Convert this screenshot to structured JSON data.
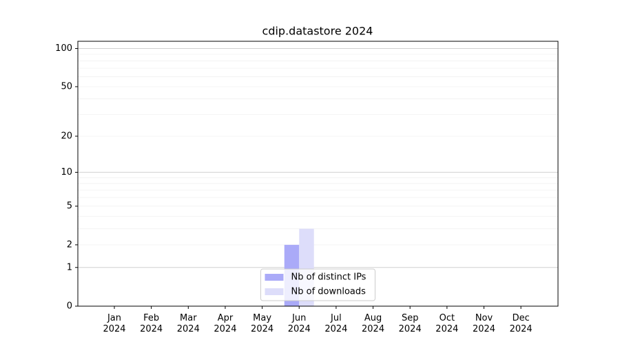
{
  "chart_data": {
    "type": "bar",
    "title": "cdip.datastore 2024",
    "categories": [
      "Jan\n2024",
      "Feb\n2024",
      "Mar\n2024",
      "Apr\n2024",
      "May\n2024",
      "Jun\n2024",
      "Jul\n2024",
      "Aug\n2024",
      "Sep\n2024",
      "Oct\n2024",
      "Nov\n2024",
      "Dec\n2024"
    ],
    "series": [
      {
        "name": "Nb of distinct IPs",
        "color": "#aaaaf8",
        "values": [
          0,
          0,
          0,
          0,
          0,
          2,
          0,
          0,
          0,
          0,
          0,
          0
        ]
      },
      {
        "name": "Nb of downloads",
        "color": "#ddddfa",
        "values": [
          0,
          0,
          0,
          0,
          0,
          3,
          0,
          0,
          0,
          0,
          0,
          0
        ]
      }
    ],
    "yscale": "log1p",
    "ylim": [
      0,
      114
    ],
    "yticks": [
      0,
      1,
      2,
      5,
      10,
      20,
      50,
      100
    ],
    "major_grid": [
      1,
      10,
      100
    ],
    "minor_grid": [
      2,
      3,
      4,
      5,
      6,
      7,
      8,
      9,
      20,
      30,
      40,
      50,
      60,
      70,
      80,
      90
    ],
    "legend": "lower center"
  }
}
